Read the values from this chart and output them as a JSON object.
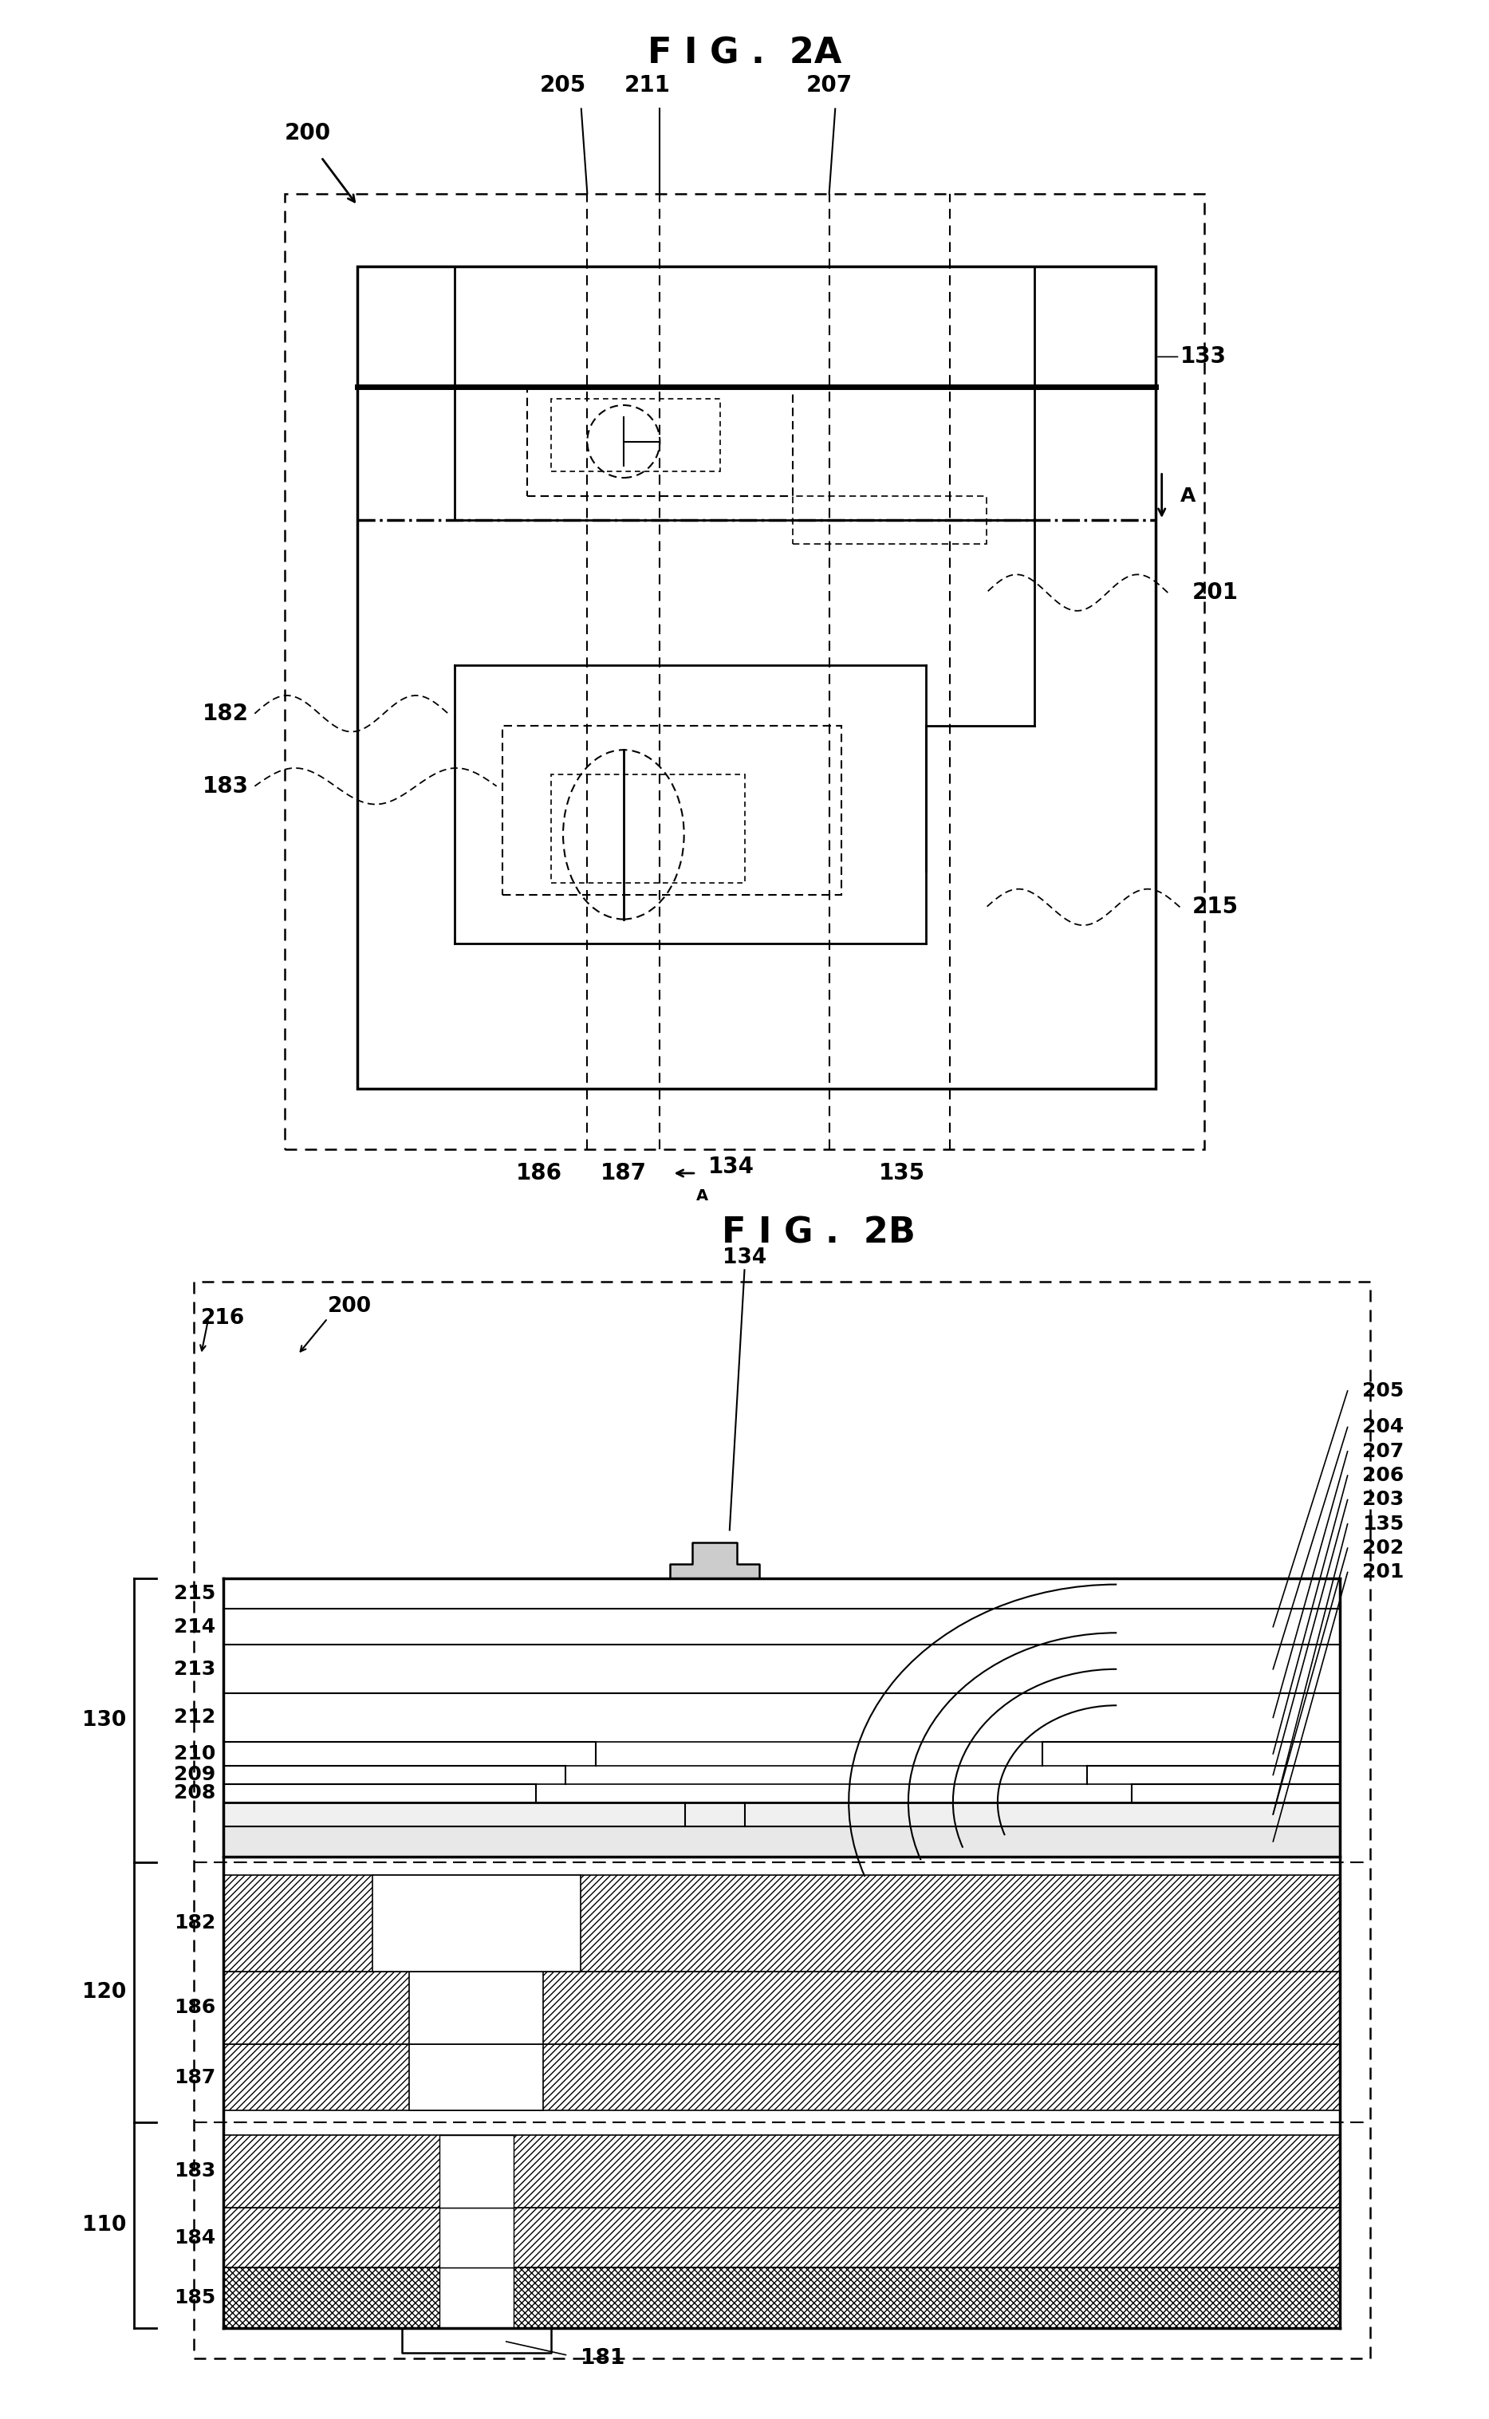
{
  "fig_title_2a": "F I G .  2A",
  "fig_title_2b": "F I G .  2B",
  "bg_color": "#ffffff",
  "lc": "#000000",
  "title_fontsize": 32,
  "label_fontsize": 20
}
